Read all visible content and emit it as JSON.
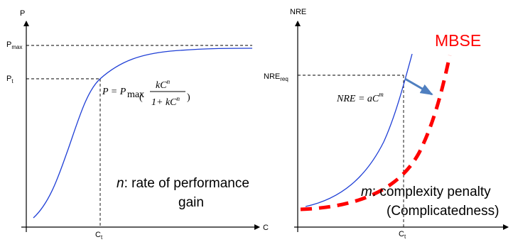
{
  "left_chart": {
    "y_axis_label": "P",
    "x_axis_label": "C",
    "p_max_main": "P",
    "p_max_sub": "max",
    "p_t_main": "P",
    "p_t_sub": "t",
    "c_t_main": "C",
    "c_t_sub": "t",
    "formula": {
      "lhs": "P = P",
      "sub": "max",
      "numerator": "kC",
      "numerator_exp": "n",
      "denominator": "1+ kC",
      "denominator_exp": "n"
    },
    "annotation_var": "n",
    "annotation_line1": ": rate of performance",
    "annotation_line2": "gain",
    "curve_color": "#1f3fd6"
  },
  "right_chart": {
    "y_axis_label": "NRE",
    "nre_req_main": "NRE",
    "nre_req_sub": "req",
    "c_t_main": "C",
    "c_t_sub": "t",
    "formula": {
      "lhs": "NRE",
      "eq": " = aC",
      "exp": "m"
    },
    "annotation_var": "m",
    "annotation_line1": ": complexity penalty",
    "annotation_line2": "(Complicatedness)",
    "mbse_label": "MBSE",
    "mbse_color": "#ff0000",
    "curve_color": "#1f3fd6",
    "arrow_color": "#4f7fc0"
  }
}
